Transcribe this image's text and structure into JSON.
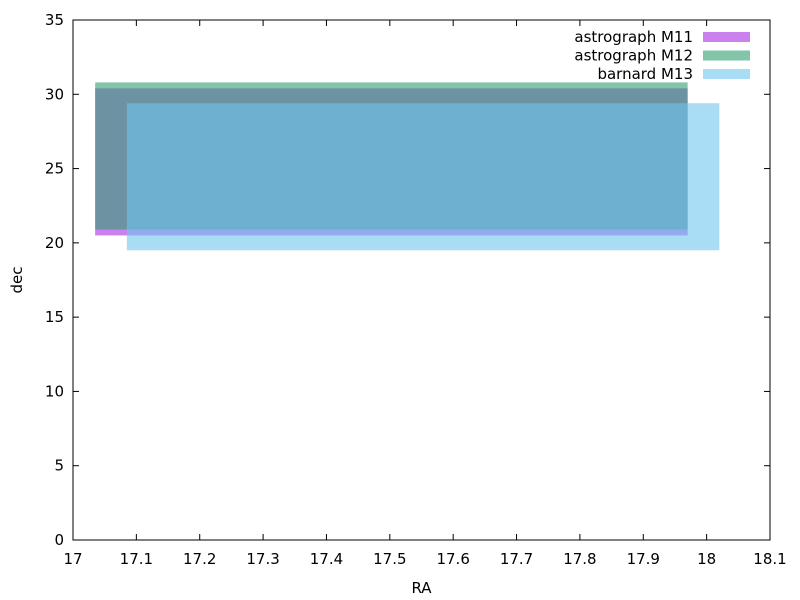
{
  "chart_data": {
    "type": "area",
    "title": "",
    "xlabel": "RA",
    "ylabel": "dec",
    "xlim": [
      17,
      18.1
    ],
    "ylim": [
      0,
      35
    ],
    "grid": false,
    "legend_position": "top-right",
    "xticks": [
      "17",
      "17.1",
      "17.2",
      "17.3",
      "17.4",
      "17.5",
      "17.6",
      "17.7",
      "17.8",
      "17.9",
      "18",
      "18.1"
    ],
    "yticks": [
      "0",
      "5",
      "10",
      "15",
      "20",
      "25",
      "30",
      "35"
    ],
    "series": [
      {
        "name": "astrograph M11",
        "color": "#b44ae6",
        "opacity": 0.7,
        "x": [
          17.035,
          17.97
        ],
        "y": [
          20.5,
          30.4
        ]
      },
      {
        "name": "astrograph M12",
        "color": "#2e9e6e",
        "opacity": 0.6,
        "x": [
          17.035,
          17.97
        ],
        "y": [
          20.9,
          30.8
        ]
      },
      {
        "name": "barnard M13",
        "color": "#6fc4ef",
        "opacity": 0.6,
        "x": [
          17.085,
          18.02
        ],
        "y": [
          19.5,
          29.4
        ]
      }
    ]
  }
}
